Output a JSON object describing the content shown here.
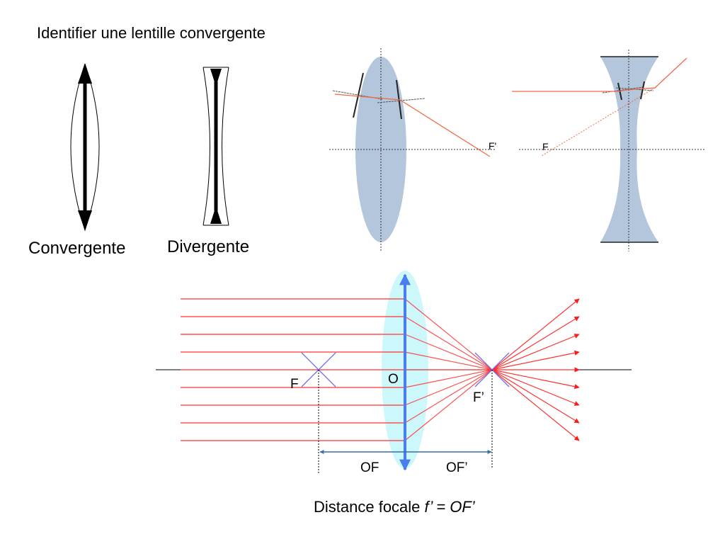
{
  "title": "Identifier une lentille convergente",
  "labels": {
    "convergente": "Convergente",
    "divergente": "Divergente",
    "f_prime_small": "F'",
    "f_small": "F",
    "f": "F",
    "o": "O",
    "f_prime": "F’",
    "of": "OF",
    "of_prime": "OF’"
  },
  "caption": {
    "prefix": "Distance focale ",
    "formula": "f’ = OF’"
  },
  "colors": {
    "ray": "#ff3030",
    "lens_fill_top": "#b3c6dc",
    "lens_fill_bottom": "#ccf8fb",
    "lens_axis": "#4a7ef0",
    "focus_cross": "#7070ee",
    "dimension": "#3a6ea8"
  }
}
